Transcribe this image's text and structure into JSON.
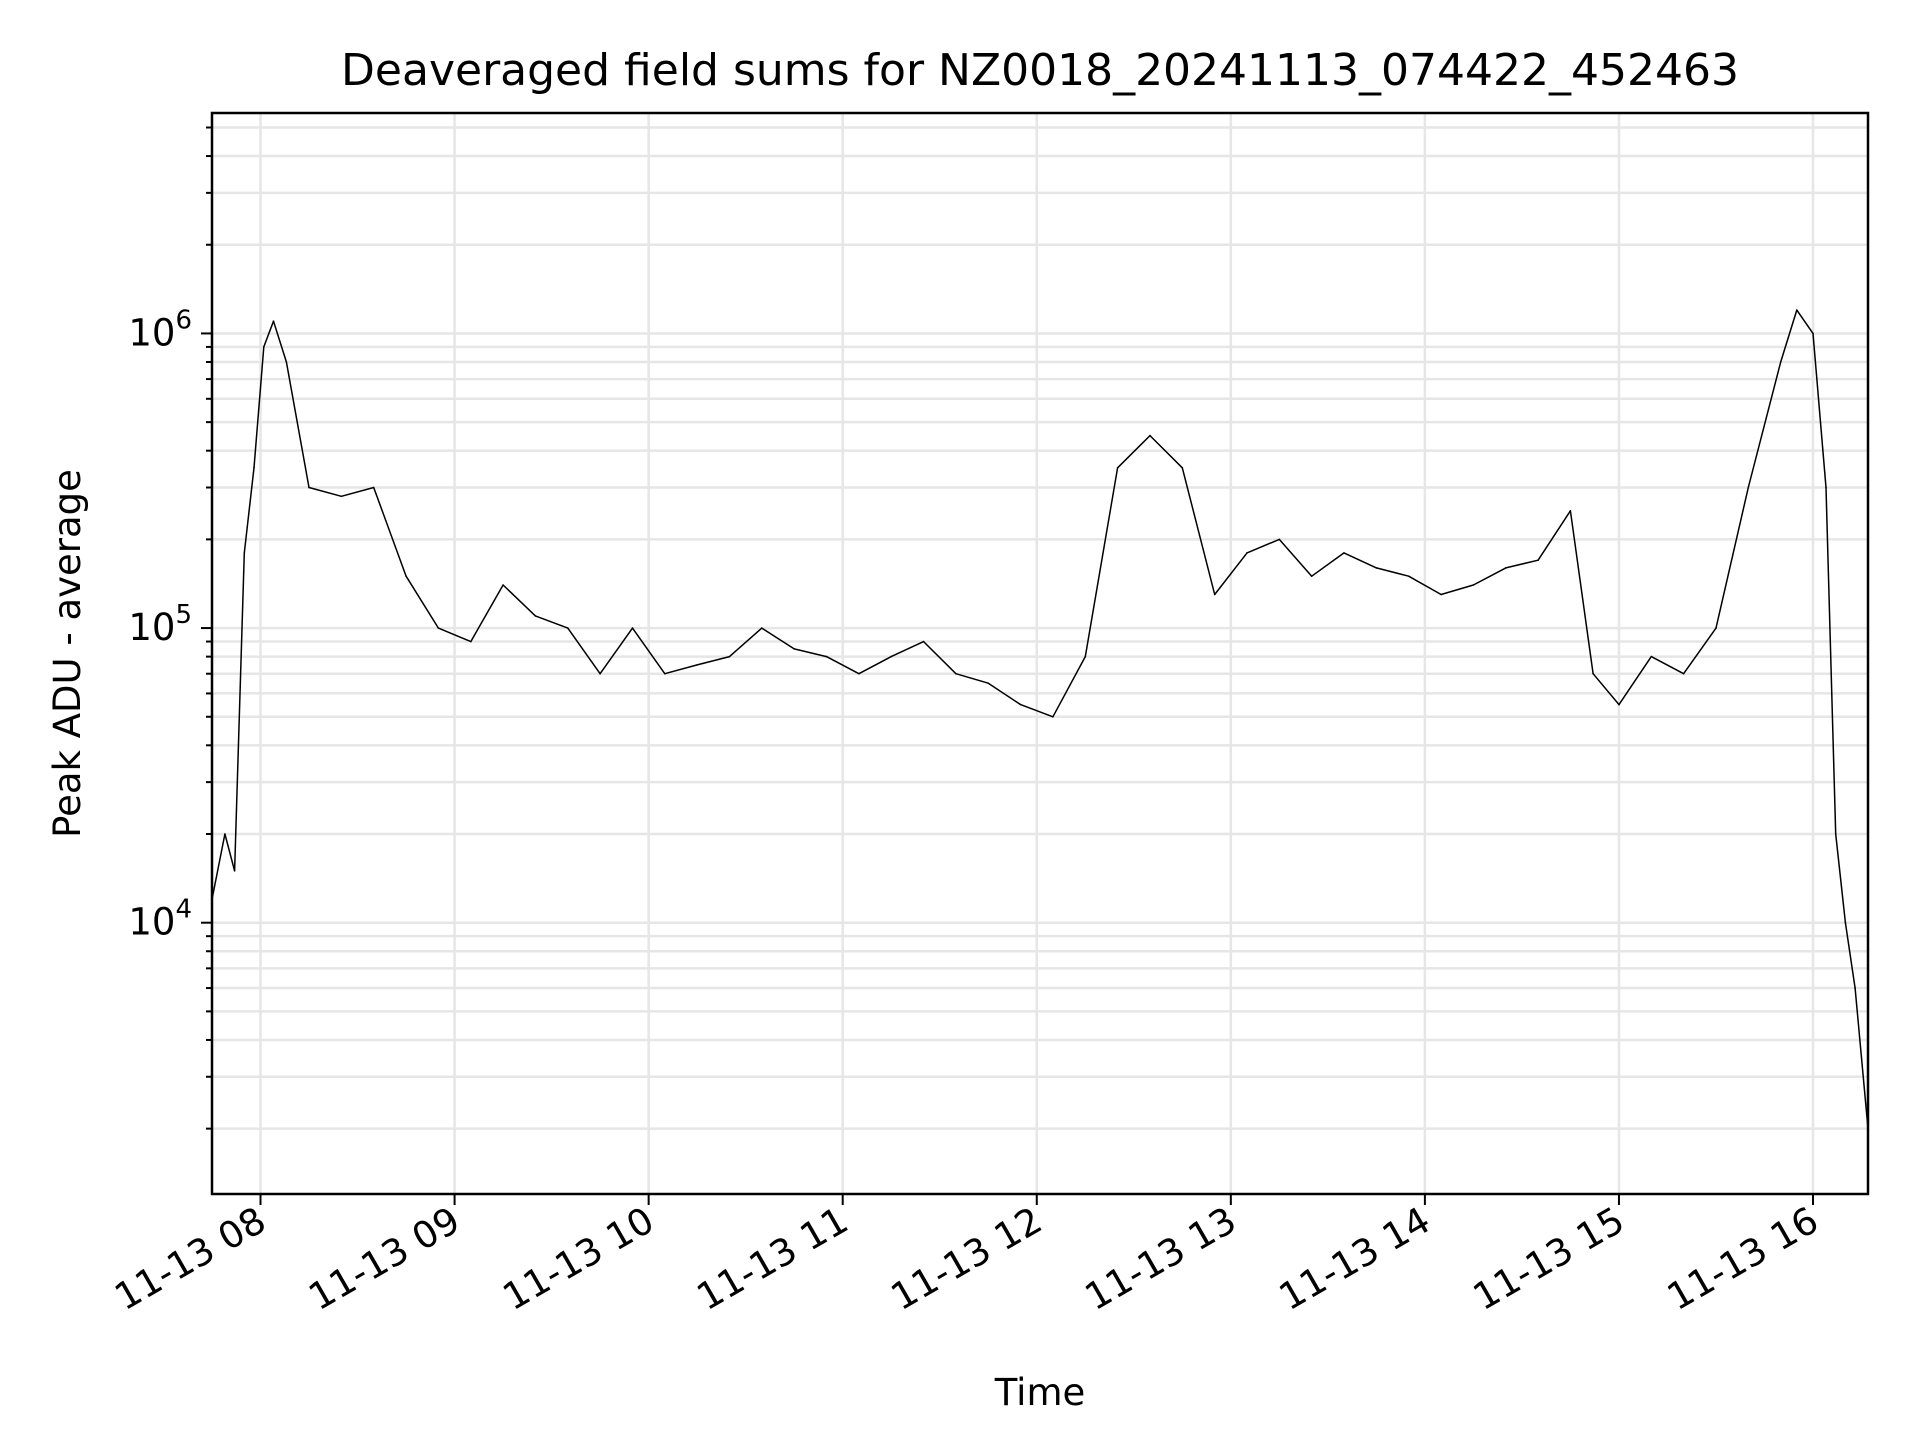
{
  "chart_data": {
    "type": "line",
    "title": "Deaveraged field sums for NZ0018_20241113_074422_452463",
    "xlabel": "Time",
    "ylabel": "Peak ADU - average",
    "x_scale": "time",
    "y_scale": "log",
    "xlim": [
      "2024-11-13 07:45",
      "2024-11-13 16:17"
    ],
    "ylim": [
      1200,
      5600000
    ],
    "x_ticks": [
      {
        "value": "2024-11-13 08:00",
        "label": "11-13 08"
      },
      {
        "value": "2024-11-13 09:00",
        "label": "11-13 09"
      },
      {
        "value": "2024-11-13 10:00",
        "label": "11-13 10"
      },
      {
        "value": "2024-11-13 11:00",
        "label": "11-13 11"
      },
      {
        "value": "2024-11-13 12:00",
        "label": "11-13 12"
      },
      {
        "value": "2024-11-13 13:00",
        "label": "11-13 13"
      },
      {
        "value": "2024-11-13 14:00",
        "label": "11-13 14"
      },
      {
        "value": "2024-11-13 15:00",
        "label": "11-13 15"
      },
      {
        "value": "2024-11-13 16:00",
        "label": "11-13 16"
      }
    ],
    "y_ticks": [
      {
        "value": 10000,
        "base": "10",
        "exp": "4"
      },
      {
        "value": 100000,
        "base": "10",
        "exp": "5"
      },
      {
        "value": 1000000,
        "base": "10",
        "exp": "6"
      }
    ],
    "grid": true,
    "grid_minor_y": true,
    "legend": "none",
    "line_color": "#000000",
    "grid_color": "#e6e6e6",
    "series": [
      {
        "x": [
          "2024-11-13 07:45",
          "2024-11-13 07:49",
          "2024-11-13 07:52",
          "2024-11-13 07:55",
          "2024-11-13 07:58",
          "2024-11-13 08:01",
          "2024-11-13 08:04",
          "2024-11-13 08:08",
          "2024-11-13 08:15",
          "2024-11-13 08:25",
          "2024-11-13 08:35",
          "2024-11-13 08:45",
          "2024-11-13 08:55",
          "2024-11-13 09:05",
          "2024-11-13 09:15",
          "2024-11-13 09:25",
          "2024-11-13 09:35",
          "2024-11-13 09:45",
          "2024-11-13 09:55",
          "2024-11-13 10:05",
          "2024-11-13 10:15",
          "2024-11-13 10:25",
          "2024-11-13 10:35",
          "2024-11-13 10:45",
          "2024-11-13 10:55",
          "2024-11-13 11:05",
          "2024-11-13 11:15",
          "2024-11-13 11:25",
          "2024-11-13 11:35",
          "2024-11-13 11:45",
          "2024-11-13 11:55",
          "2024-11-13 12:05",
          "2024-11-13 12:15",
          "2024-11-13 12:25",
          "2024-11-13 12:35",
          "2024-11-13 12:45",
          "2024-11-13 12:55",
          "2024-11-13 13:05",
          "2024-11-13 13:15",
          "2024-11-13 13:25",
          "2024-11-13 13:35",
          "2024-11-13 13:45",
          "2024-11-13 13:55",
          "2024-11-13 14:05",
          "2024-11-13 14:15",
          "2024-11-13 14:25",
          "2024-11-13 14:35",
          "2024-11-13 14:45",
          "2024-11-13 14:52",
          "2024-11-13 15:00",
          "2024-11-13 15:10",
          "2024-11-13 15:20",
          "2024-11-13 15:30",
          "2024-11-13 15:40",
          "2024-11-13 15:50",
          "2024-11-13 15:55",
          "2024-11-13 16:00",
          "2024-11-13 16:04",
          "2024-11-13 16:07",
          "2024-11-13 16:10",
          "2024-11-13 16:13",
          "2024-11-13 16:17"
        ],
        "y": [
          12000,
          20000,
          15000,
          180000,
          350000,
          900000,
          1100000,
          800000,
          300000,
          280000,
          300000,
          150000,
          100000,
          90000,
          140000,
          110000,
          100000,
          70000,
          100000,
          70000,
          75000,
          80000,
          100000,
          85000,
          80000,
          70000,
          80000,
          90000,
          70000,
          65000,
          55000,
          50000,
          80000,
          350000,
          450000,
          350000,
          130000,
          180000,
          200000,
          150000,
          180000,
          160000,
          150000,
          130000,
          140000,
          160000,
          170000,
          250000,
          70000,
          55000,
          80000,
          70000,
          100000,
          300000,
          800000,
          1200000,
          1000000,
          300000,
          20000,
          10000,
          6000,
          2000
        ]
      }
    ]
  }
}
